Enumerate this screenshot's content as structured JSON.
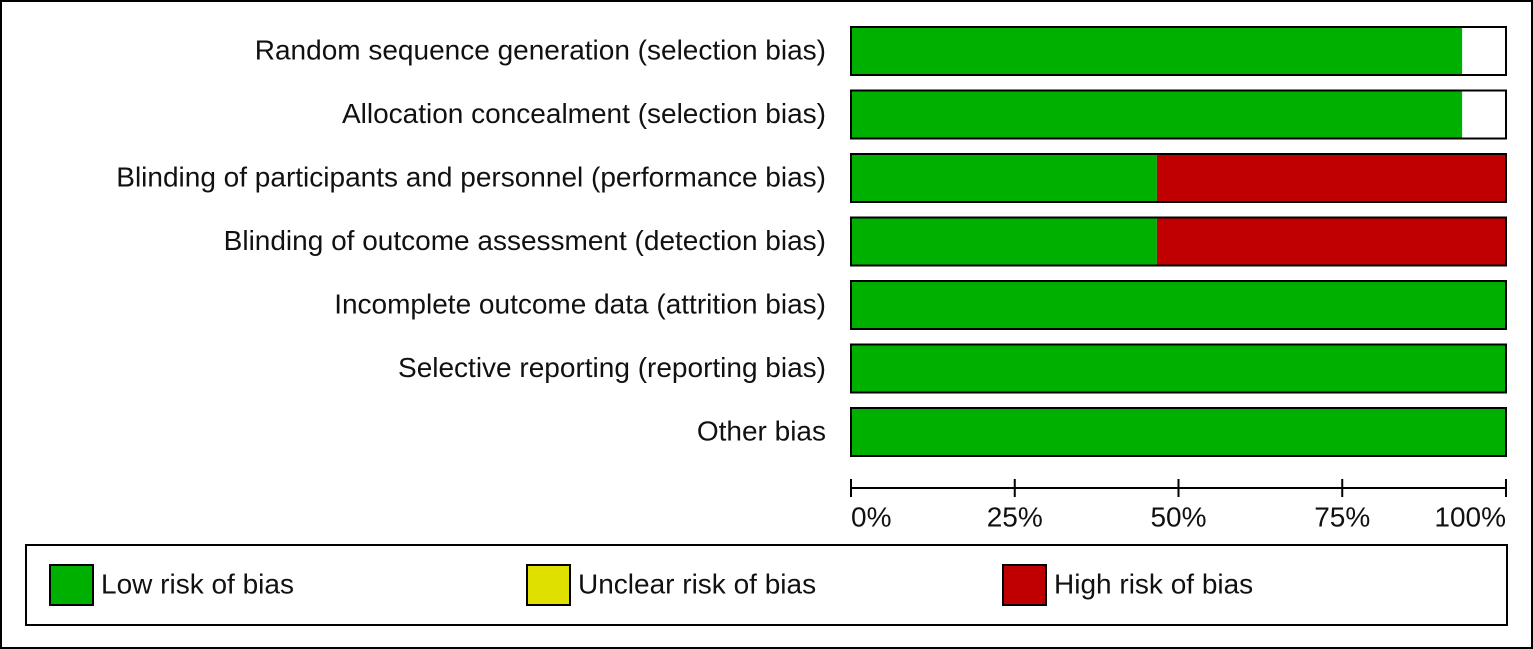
{
  "chart_data": {
    "type": "stacked-bar-horizontal",
    "categories": [
      "Random sequence generation (selection bias)",
      "Allocation concealment (selection bias)",
      "Blinding of participants and personnel (performance bias)",
      "Blinding of outcome assessment (detection bias)",
      "Incomplete outcome data (attrition bias)",
      "Selective reporting (reporting bias)",
      "Other bias"
    ],
    "series": [
      {
        "name": "Low risk of bias",
        "color": "#00b000",
        "values": [
          93.3,
          93.3,
          46.7,
          46.7,
          100,
          100,
          100
        ]
      },
      {
        "name": "Unclear risk of bias",
        "color": "#e0e000",
        "values": [
          0,
          0,
          0,
          0,
          0,
          0,
          0
        ]
      },
      {
        "name": "High risk of bias",
        "color": "#c00000",
        "values": [
          0,
          0,
          53.3,
          53.3,
          0,
          0,
          0
        ]
      }
    ],
    "xlim": [
      0,
      100
    ],
    "xticks": [
      {
        "value": 0,
        "label": "0%"
      },
      {
        "value": 25,
        "label": "25%"
      },
      {
        "value": 50,
        "label": "50%"
      },
      {
        "value": 75,
        "label": "75%"
      },
      {
        "value": 100,
        "label": "100%"
      }
    ]
  }
}
